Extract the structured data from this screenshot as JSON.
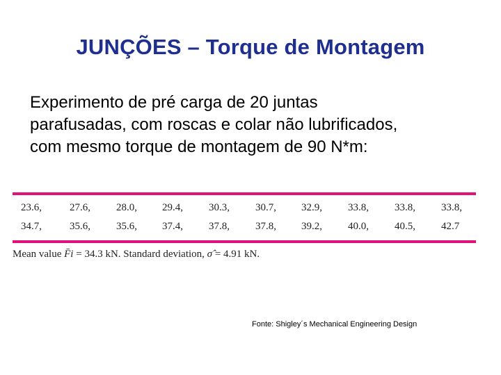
{
  "slide": {
    "title": "JUNÇÕES – Torque de Montagem",
    "intro_lines": [
      "Experimento de pré carga de 20 juntas",
      "parafusadas, com roscas e colar não lubrificados,",
      "com mesmo torque de montagem de 90 N*m:"
    ]
  },
  "table": {
    "rows": [
      [
        "23.6,",
        "27.6,",
        "28.0,",
        "29.4,",
        "30.3,",
        "30.7,",
        "32.9,",
        "33.8,",
        "33.8,",
        "33.8,"
      ],
      [
        "34.7,",
        "35.6,",
        "35.6,",
        "37.4,",
        "37.8,",
        "37.8,",
        "39.2,",
        "40.0,",
        "40.5,",
        "42.7"
      ]
    ],
    "rule_color": "#e0127a"
  },
  "summary": {
    "mean_prefix": "Mean value ",
    "mean_symbol": "F̄i",
    "mean_value": " = 34.3 kN. Standard deviation, ",
    "sd_symbol": "σ̂",
    "sd_value": " = 4.91 kN."
  },
  "source": "Fonte: Shigley´s Mechanical Engineering Design",
  "colors": {
    "title": "#1f2f8f",
    "text": "#000000"
  }
}
